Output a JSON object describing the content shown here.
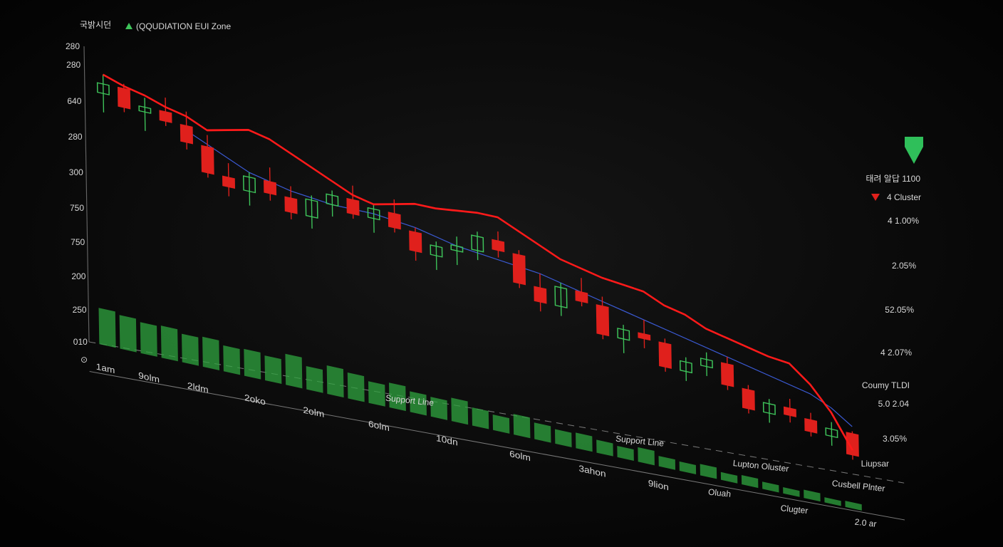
{
  "chart_data": {
    "type": "candlestick",
    "title": "국밝시던",
    "subtitle": "(QQUDIATION EUI Zone",
    "up_color": "#3ec45a",
    "down_color": "#e0201c",
    "ylim": [
      0,
      100
    ],
    "y_labels": [
      "280",
      "280",
      "640",
      "280",
      "300",
      "750",
      "750",
      "200",
      "250",
      "010"
    ],
    "x_labels": [
      "1am",
      "9olm",
      "2ldm",
      "2oko",
      "2olm",
      "6olm",
      "10dn",
      "6olm",
      "3ahon",
      "9lion"
    ],
    "candles": {
      "open": [
        88,
        92,
        84,
        86,
        82,
        75,
        64,
        60,
        66,
        61,
        55,
        62,
        66,
        60,
        64,
        58,
        50,
        54,
        56,
        62,
        58,
        46,
        40,
        48,
        44,
        32,
        36,
        34,
        24,
        28,
        31,
        22,
        14,
        18,
        15,
        10,
        13
      ],
      "high": [
        96,
        94,
        90,
        92,
        88,
        80,
        70,
        68,
        72,
        66,
        64,
        68,
        72,
        66,
        70,
        60,
        56,
        60,
        64,
        66,
        60,
        52,
        50,
        54,
        48,
        38,
        42,
        36,
        30,
        34,
        34,
        24,
        20,
        22,
        18,
        16,
        14
      ],
      "low": [
        80,
        82,
        76,
        80,
        72,
        62,
        56,
        54,
        58,
        52,
        50,
        57,
        58,
        54,
        56,
        46,
        44,
        48,
        52,
        55,
        44,
        36,
        36,
        42,
        30,
        26,
        30,
        22,
        20,
        24,
        20,
        12,
        10,
        12,
        8,
        6,
        2
      ],
      "close": [
        92,
        84,
        86,
        82,
        75,
        64,
        60,
        66,
        61,
        55,
        62,
        66,
        60,
        64,
        58,
        50,
        54,
        56,
        62,
        58,
        46,
        40,
        48,
        44,
        32,
        36,
        34,
        24,
        28,
        31,
        22,
        14,
        18,
        15,
        10,
        13,
        4
      ]
    },
    "series": [
      {
        "name": "Trend",
        "color": "#ff1a1a",
        "values": [
          96,
          93,
          91,
          88,
          86,
          82,
          84,
          86,
          84,
          80,
          76,
          72,
          68,
          66,
          68,
          70,
          70,
          71,
          72,
          72,
          68,
          64,
          60,
          58,
          56,
          55,
          54,
          50,
          48,
          44,
          42,
          40,
          38,
          37,
          30,
          20,
          6
        ]
      },
      {
        "name": "MA",
        "color": "#3b5bd6",
        "values": [
          null,
          null,
          null,
          null,
          80,
          76,
          72,
          68,
          66,
          64,
          63,
          62,
          62,
          62,
          61,
          60,
          58,
          56,
          55,
          54,
          53,
          52,
          50,
          48,
          46,
          44,
          42,
          40,
          38,
          36,
          34,
          32,
          30,
          28,
          26,
          22,
          16
        ]
      }
    ],
    "volume": {
      "color": "#2fa43f",
      "ylim": [
        0,
        100
      ],
      "values": [
        70,
        65,
        60,
        62,
        55,
        58,
        50,
        52,
        48,
        60,
        45,
        55,
        50,
        42,
        48,
        40,
        38,
        45,
        35,
        30,
        40,
        32,
        28,
        30,
        25,
        22,
        28,
        20,
        18,
        22,
        15,
        18,
        14,
        12,
        16,
        10,
        12
      ]
    },
    "annotations": [
      "Support Line",
      "Support Line",
      "Lupton Oluster",
      "Cusbell Plnter",
      "Oluah",
      "Clugter",
      "2.0 ar"
    ],
    "side_panel": [
      "태려 알답 1100",
      "4 Cluster",
      "4 1.00%",
      "2.05%",
      "52.05%",
      "4 2.07%",
      "Coumy TLDI",
      "5.0 2.04",
      "3.05%",
      "Liupsar"
    ]
  }
}
